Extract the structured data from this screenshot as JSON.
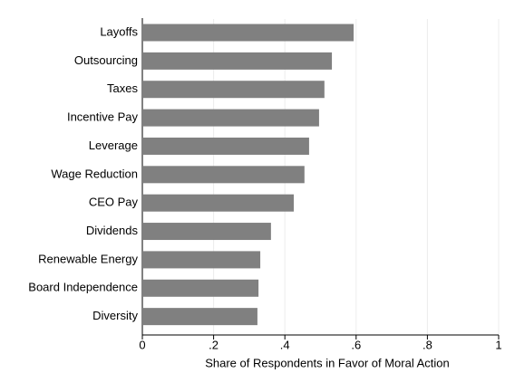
{
  "chart_data": {
    "type": "bar",
    "orientation": "horizontal",
    "x_label": "Share of Respondents in Favor of Moral Action",
    "categories": [
      "Layoffs",
      "Outsourcing",
      "Taxes",
      "Incentive Pay",
      "Leverage",
      "Wage Reduction",
      "CEO Pay",
      "Dividends",
      "Renewable Energy",
      "Board Independence",
      "Diversity"
    ],
    "values": [
      0.593,
      0.532,
      0.511,
      0.496,
      0.468,
      0.455,
      0.425,
      0.361,
      0.331,
      0.326,
      0.323
    ],
    "color": "#808080",
    "xlim": [
      0,
      1
    ],
    "xticks": [
      0,
      {
        "value": 0.2,
        "label": ".2"
      },
      {
        "value": 0.4,
        "label": ".4"
      },
      {
        "value": 0.6,
        "label": ".6"
      },
      {
        "value": 0.8,
        "label": ".8"
      },
      1
    ],
    "grid": true
  }
}
